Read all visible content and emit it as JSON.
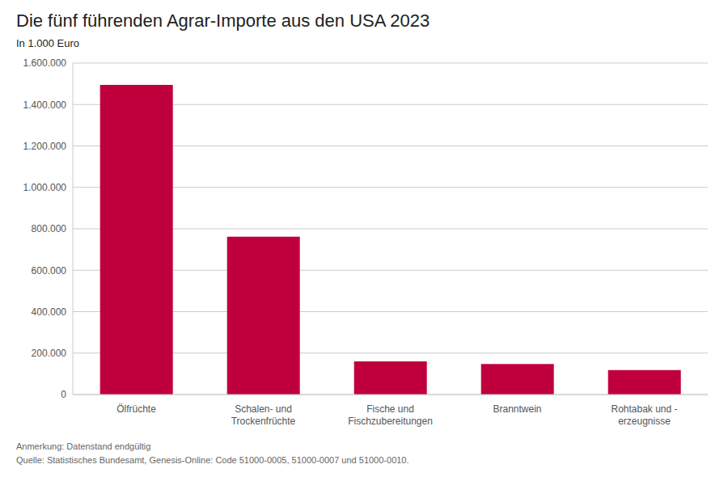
{
  "chart_data": {
    "type": "bar",
    "title": "Die fünf führenden Agrar-Importe aus den USA 2023",
    "subtitle": "In 1.000 Euro",
    "annotation": "Anmerkung: Datenstand endgültig\nQuelle: Statistisches Bundesamt, Genesis-Online: Code 51000-0005, 51000-0007 und 51000-0010.",
    "categories": [
      "Ölfrüchte",
      "Schalen- und\nTrockenfrüchte",
      "Fische und\nFischzubereitungen",
      "Branntwein",
      "Rohtabak und -\nerzeugnisse"
    ],
    "values": [
      1495000,
      762000,
      160000,
      147000,
      118000
    ],
    "color": "#C0003C",
    "ylim": [
      0,
      1600000
    ],
    "yticks": [
      0,
      {
        "value": 200000,
        "label": "200.000"
      },
      {
        "value": 400000,
        "label": "400.000"
      },
      {
        "value": 600000,
        "label": "600.000"
      },
      {
        "value": 800000,
        "label": "800.000"
      },
      {
        "value": 1000000,
        "label": "1.000.000"
      },
      {
        "value": 1200000,
        "label": "1.200.000"
      },
      {
        "value": 1400000,
        "label": "1.400.000"
      },
      {
        "value": 1600000,
        "label": "1.600.000"
      }
    ],
    "grid": true
  }
}
